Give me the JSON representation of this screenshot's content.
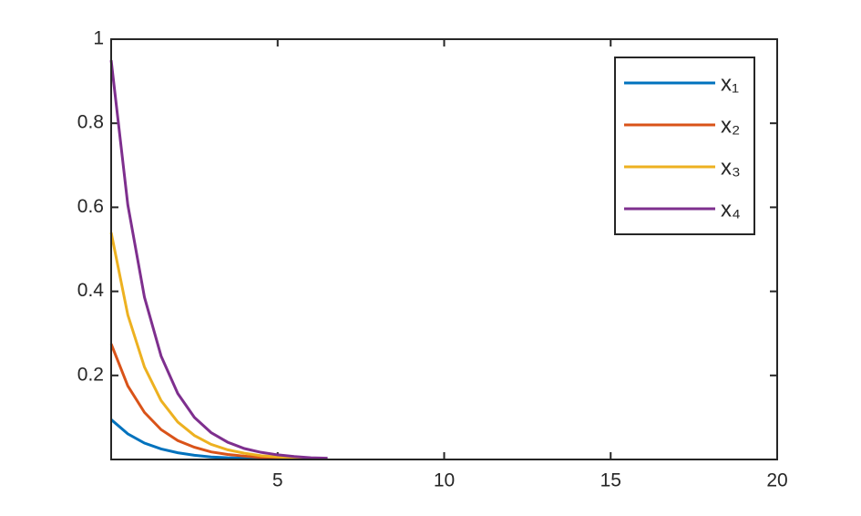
{
  "chart_data": {
    "type": "line",
    "x": [
      0,
      0.5,
      1,
      1.5,
      2,
      2.5,
      3,
      3.5,
      4,
      4.5,
      5,
      5.5,
      6,
      6.5
    ],
    "series": [
      {
        "name": "x₁",
        "color": "#0072BD",
        "values": [
          0.095,
          0.061,
          0.039,
          0.025,
          0.016,
          0.01,
          0.006,
          0.004,
          0.003,
          0.002,
          null,
          null,
          null,
          null
        ]
      },
      {
        "name": "x₂",
        "color": "#D95319",
        "values": [
          0.275,
          0.175,
          0.112,
          0.071,
          0.045,
          0.029,
          0.018,
          0.012,
          0.008,
          0.005,
          0.003,
          0.002,
          null,
          null
        ]
      },
      {
        "name": "x₃",
        "color": "#EDB120",
        "values": [
          0.54,
          0.344,
          0.22,
          0.14,
          0.089,
          0.057,
          0.036,
          0.023,
          0.015,
          0.009,
          0.006,
          0.004,
          0.002,
          null
        ]
      },
      {
        "name": "x₄",
        "color": "#7E2F8E",
        "values": [
          0.95,
          0.606,
          0.386,
          0.246,
          0.157,
          0.1,
          0.064,
          0.041,
          0.026,
          0.017,
          0.011,
          0.007,
          0.004,
          0.003
        ]
      }
    ],
    "xlim": [
      0,
      20
    ],
    "xticks": [
      5,
      10,
      15,
      20
    ],
    "ylim": [
      0,
      1
    ],
    "yticks": [
      0.2,
      0.4,
      0.6,
      0.8,
      1
    ],
    "grid": false,
    "legend": "top-right"
  }
}
